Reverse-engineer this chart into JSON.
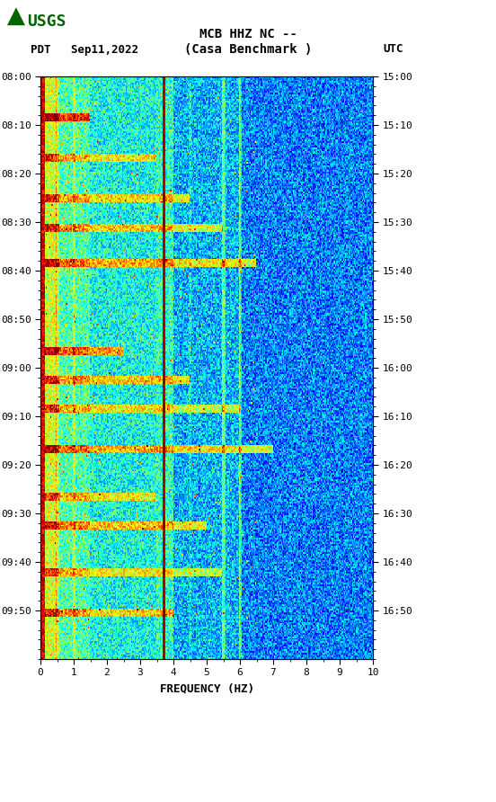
{
  "title_line1": "MCB HHZ NC --",
  "title_line2": "(Casa Benchmark )",
  "left_label": "PDT   Sep11,2022",
  "right_label": "UTC",
  "xlabel": "FREQUENCY (HZ)",
  "freq_min": 0,
  "freq_max": 10,
  "ytick_pdt": [
    "08:00",
    "08:10",
    "08:20",
    "08:30",
    "08:40",
    "08:50",
    "09:00",
    "09:10",
    "09:20",
    "09:30",
    "09:40",
    "09:50"
  ],
  "ytick_utc": [
    "15:00",
    "15:10",
    "15:20",
    "15:30",
    "15:40",
    "15:50",
    "16:00",
    "16:10",
    "16:20",
    "16:30",
    "16:40",
    "16:50"
  ],
  "xticks": [
    0,
    1,
    2,
    3,
    4,
    5,
    6,
    7,
    8,
    9,
    10
  ],
  "colormap": "jet",
  "bg_color": "#ffffff",
  "usgs_color": "#006400",
  "fig_width": 5.52,
  "fig_height": 8.92,
  "random_seed": 42,
  "n_freq": 300,
  "n_time": 360,
  "vmin": -1.0,
  "vmax": 2.5
}
